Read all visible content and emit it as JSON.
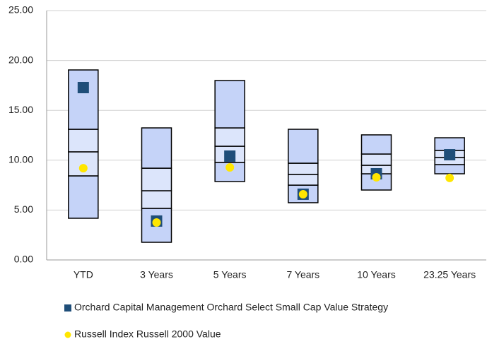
{
  "chart_data": {
    "type": "floating-bar",
    "categories": [
      "YTD",
      "3 Years",
      "5 Years",
      "7 Years",
      "10 Years",
      "23.25 Years"
    ],
    "percentiles": {
      "p5": [
        4.18,
        1.77,
        7.86,
        5.74,
        7.01,
        8.64
      ],
      "p25": [
        8.43,
        5.17,
        9.77,
        7.5,
        8.64,
        9.56
      ],
      "median": [
        10.84,
        6.94,
        11.4,
        8.57,
        9.49,
        10.27
      ],
      "p75": [
        13.1,
        9.2,
        13.24,
        9.7,
        10.62,
        10.98
      ],
      "p95": [
        19.05,
        13.24,
        17.99,
        13.1,
        12.54,
        12.25
      ]
    },
    "box_colors": {
      "outer": "#c5d3f8",
      "inner": "#dce5fb"
    },
    "series": [
      {
        "name": "Orchard Capital Management Orchard Select Small Cap Value Strategy",
        "color": "#1f4e79",
        "marker": "square",
        "values": [
          17.28,
          3.9,
          10.41,
          6.59,
          8.64,
          10.55
        ]
      },
      {
        "name": "Russell Index Russell 2000 Value",
        "color": "#ffe600",
        "marker": "circle",
        "values": [
          9.2,
          3.75,
          9.28,
          6.59,
          8.29,
          8.22
        ]
      }
    ],
    "ylim": [
      0,
      25
    ],
    "yticks": [
      {
        "value": 0,
        "label": "0.00"
      },
      {
        "value": 5,
        "label": "5.00"
      },
      {
        "value": 10,
        "label": "10.00"
      },
      {
        "value": 15,
        "label": "15.00"
      },
      {
        "value": 20,
        "label": "20.00"
      },
      {
        "value": 25,
        "label": "25.00"
      }
    ],
    "grid": true
  }
}
